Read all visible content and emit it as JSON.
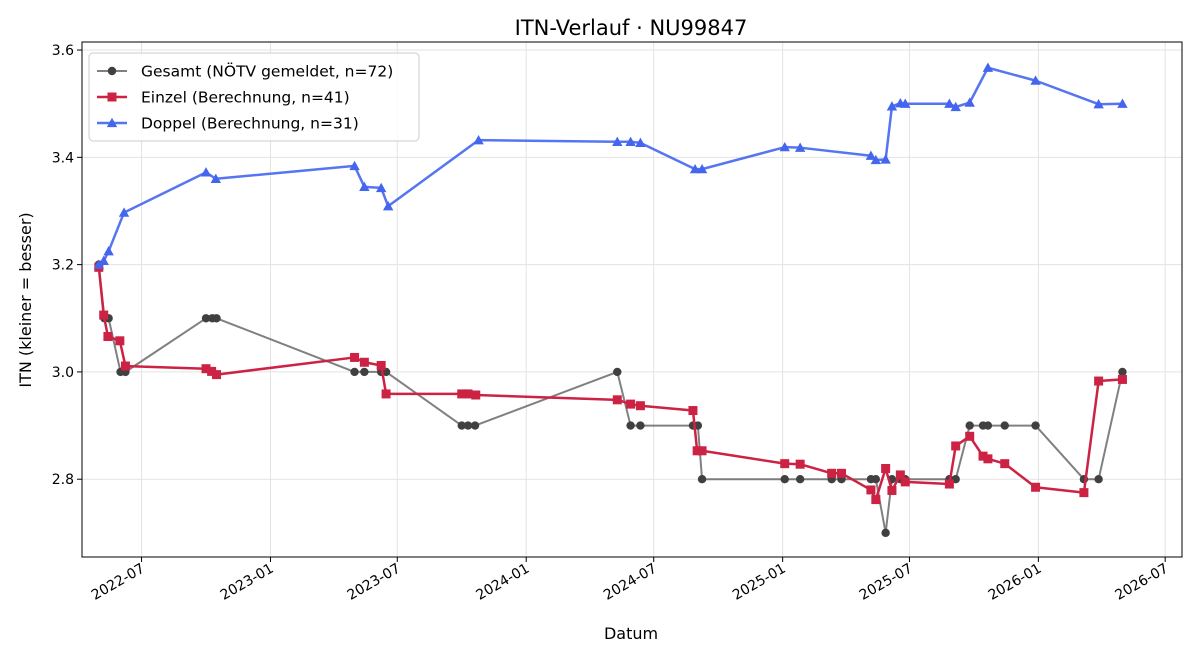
{
  "chart_data": {
    "type": "line",
    "title": "ITN-Verlauf · NU99847",
    "xlabel": "Datum",
    "ylabel": "ITN  (kleiner = besser)",
    "x_ticks": [
      "2022-07",
      "2023-01",
      "2023-07",
      "2024-01",
      "2024-07",
      "2025-01",
      "2025-07",
      "2026-01",
      "2026-07"
    ],
    "y_ticks": [
      "2.8",
      "3.0",
      "3.2",
      "3.4",
      "3.6"
    ],
    "ylim": [
      2.655,
      3.615
    ],
    "xlim": [
      "2022-04-07",
      "2026-07-25"
    ],
    "grid": true,
    "legend_position": "top-left",
    "series": [
      {
        "name": "Gesamt (NÖTV gemeldet, n=72)",
        "color": "#555555",
        "marker": "circle",
        "points": [
          [
            "2022-05-01",
            3.2
          ],
          [
            "2022-05-09",
            3.1
          ],
          [
            "2022-05-15",
            3.1
          ],
          [
            "2022-06-01",
            3.0
          ],
          [
            "2022-06-08",
            3.0
          ],
          [
            "2022-10-01",
            3.1
          ],
          [
            "2022-10-10",
            3.1
          ],
          [
            "2022-10-16",
            3.1
          ],
          [
            "2023-05-01",
            3.0
          ],
          [
            "2023-05-15",
            3.0
          ],
          [
            "2023-06-08",
            3.0
          ],
          [
            "2023-06-15",
            3.0
          ],
          [
            "2023-10-01",
            2.9
          ],
          [
            "2023-10-10",
            2.9
          ],
          [
            "2023-10-20",
            2.9
          ],
          [
            "2024-05-10",
            3.0
          ],
          [
            "2024-05-29",
            2.9
          ],
          [
            "2024-06-12",
            2.9
          ],
          [
            "2024-08-26",
            2.9
          ],
          [
            "2024-09-02",
            2.9
          ],
          [
            "2024-09-08",
            2.8
          ],
          [
            "2025-01-04",
            2.8
          ],
          [
            "2025-01-26",
            2.8
          ],
          [
            "2025-03-12",
            2.8
          ],
          [
            "2025-03-26",
            2.8
          ],
          [
            "2025-05-07",
            2.8
          ],
          [
            "2025-05-14",
            2.8
          ],
          [
            "2025-05-28",
            2.7
          ],
          [
            "2025-06-06",
            2.8
          ],
          [
            "2025-06-18",
            2.8
          ],
          [
            "2025-06-25",
            2.8
          ],
          [
            "2025-08-27",
            2.8
          ],
          [
            "2025-09-05",
            2.8
          ],
          [
            "2025-09-25",
            2.9
          ],
          [
            "2025-10-14",
            2.9
          ],
          [
            "2025-10-21",
            2.9
          ],
          [
            "2025-11-14",
            2.9
          ],
          [
            "2025-12-28",
            2.9
          ],
          [
            "2026-03-07",
            2.8
          ],
          [
            "2026-03-28",
            2.8
          ],
          [
            "2026-05-01",
            3.0
          ]
        ]
      },
      {
        "name": "Einzel (Berechnung, n=41)",
        "color": "#cc2244",
        "marker": "square",
        "points": [
          [
            "2022-05-01",
            3.195
          ],
          [
            "2022-05-08",
            3.106
          ],
          [
            "2022-05-14",
            3.066
          ],
          [
            "2022-05-31",
            3.058
          ],
          [
            "2022-06-08",
            3.011
          ],
          [
            "2022-10-01",
            3.006
          ],
          [
            "2022-10-09",
            3.001
          ],
          [
            "2022-10-16",
            2.995
          ],
          [
            "2023-05-01",
            3.027
          ],
          [
            "2023-05-15",
            3.018
          ],
          [
            "2023-06-08",
            3.012
          ],
          [
            "2023-06-15",
            2.959
          ],
          [
            "2023-10-01",
            2.959
          ],
          [
            "2023-10-10",
            2.959
          ],
          [
            "2023-10-21",
            2.957
          ],
          [
            "2024-05-10",
            2.948
          ],
          [
            "2024-05-29",
            2.94
          ],
          [
            "2024-06-12",
            2.937
          ],
          [
            "2024-08-26",
            2.928
          ],
          [
            "2024-09-01",
            2.853
          ],
          [
            "2024-09-08",
            2.853
          ],
          [
            "2025-01-04",
            2.829
          ],
          [
            "2025-01-26",
            2.828
          ],
          [
            "2025-03-12",
            2.811
          ],
          [
            "2025-03-26",
            2.811
          ],
          [
            "2025-05-07",
            2.78
          ],
          [
            "2025-05-14",
            2.762
          ],
          [
            "2025-05-28",
            2.82
          ],
          [
            "2025-06-06",
            2.779
          ],
          [
            "2025-06-18",
            2.808
          ],
          [
            "2025-06-25",
            2.795
          ],
          [
            "2025-08-27",
            2.791
          ],
          [
            "2025-09-05",
            2.862
          ],
          [
            "2025-09-25",
            2.88
          ],
          [
            "2025-10-14",
            2.843
          ],
          [
            "2025-10-21",
            2.838
          ],
          [
            "2025-11-14",
            2.829
          ],
          [
            "2025-12-28",
            2.785
          ],
          [
            "2026-03-07",
            2.775
          ],
          [
            "2026-03-28",
            2.983
          ],
          [
            "2026-05-01",
            2.986
          ]
        ]
      },
      {
        "name": "Doppel (Berechnung, n=31)",
        "color": "#4466ee",
        "marker": "triangle",
        "points": [
          [
            "2022-05-01",
            3.2
          ],
          [
            "2022-05-08",
            3.207
          ],
          [
            "2022-05-15",
            3.225
          ],
          [
            "2022-06-06",
            3.297
          ],
          [
            "2022-10-01",
            3.372
          ],
          [
            "2022-10-15",
            3.36
          ],
          [
            "2023-05-01",
            3.384
          ],
          [
            "2023-05-15",
            3.345
          ],
          [
            "2023-06-08",
            3.343
          ],
          [
            "2023-06-18",
            3.309
          ],
          [
            "2023-10-25",
            3.432
          ],
          [
            "2024-05-10",
            3.429
          ],
          [
            "2024-05-29",
            3.429
          ],
          [
            "2024-06-12",
            3.427
          ],
          [
            "2024-08-29",
            3.378
          ],
          [
            "2024-09-08",
            3.378
          ],
          [
            "2025-01-04",
            3.419
          ],
          [
            "2025-01-26",
            3.418
          ],
          [
            "2025-05-07",
            3.403
          ],
          [
            "2025-05-14",
            3.395
          ],
          [
            "2025-05-28",
            3.396
          ],
          [
            "2025-06-06",
            3.495
          ],
          [
            "2025-06-18",
            3.501
          ],
          [
            "2025-06-25",
            3.5
          ],
          [
            "2025-08-27",
            3.5
          ],
          [
            "2025-09-05",
            3.494
          ],
          [
            "2025-09-25",
            3.502
          ],
          [
            "2025-10-21",
            3.567
          ],
          [
            "2025-12-28",
            3.543
          ],
          [
            "2026-03-28",
            3.499
          ],
          [
            "2026-05-01",
            3.5
          ]
        ]
      }
    ]
  }
}
